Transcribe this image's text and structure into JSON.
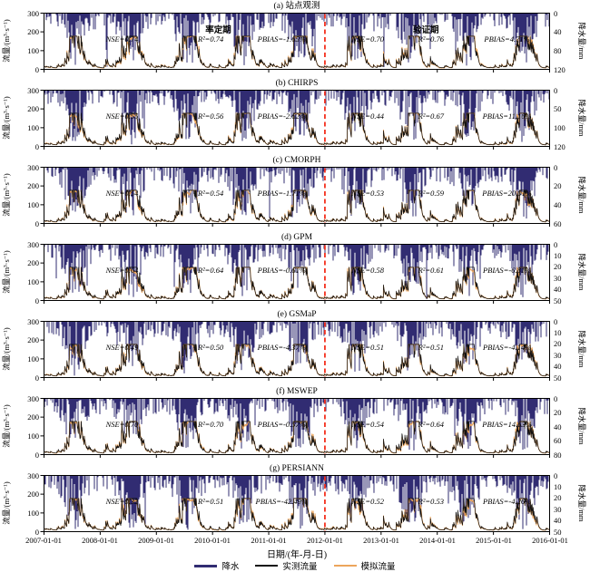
{
  "figure": {
    "x_axis": {
      "label": "日期/(年-月-日)",
      "ticks": [
        "2007-01-01",
        "2008-01-01",
        "2009-01-01",
        "2010-01-01",
        "2011-01-01",
        "2012-01-01",
        "2013-01-01",
        "2014-01-01",
        "2015-01-01",
        "2016-01-01"
      ]
    },
    "flow_axis": {
      "label": "流量/(m³·s⁻¹)",
      "ticks": [
        "300",
        "200",
        "100",
        "0"
      ]
    },
    "precip_axis_label": "降水量/mm",
    "period_labels": {
      "calibration": "率定期",
      "validation": "验证期"
    },
    "divider": {
      "date": "2012-01-01",
      "color": "#f5301e",
      "style": "dashed"
    },
    "legend": [
      {
        "key": "precipitation",
        "label": "降水",
        "color": "#312c72",
        "thickness": 3
      },
      {
        "key": "observed-flow",
        "label": "实测流量",
        "color": "#111111",
        "thickness": 1.2
      },
      {
        "key": "simulated-flow",
        "label": "模拟流量",
        "color": "#eca55c",
        "thickness": 1.2
      }
    ]
  },
  "chart_data": [
    {
      "type": "line+bar",
      "panel": "a",
      "title": "(a) 站点观测",
      "x_range": [
        "2007-01-01",
        "2016-01-01"
      ],
      "split_date": "2012-01-01",
      "series": [
        "降水",
        "实测流量",
        "模拟流量"
      ],
      "flow_ylim": [
        0,
        300
      ],
      "flow_ticks": [
        0,
        100,
        200,
        300
      ],
      "precip_ticks": [
        0,
        40,
        80,
        120
      ],
      "precip_axis_inverted": true,
      "approx_peak_flow_m3s": [
        90,
        170
      ],
      "calibration_stats": [
        "NSE=0.74",
        "R²=0.74",
        "PBIAS=-1.65%"
      ],
      "validation_stats": [
        "NSE=0.70",
        "R²=0.76",
        "PBIAS=4.71%"
      ]
    },
    {
      "type": "line+bar",
      "panel": "b",
      "title": "(b) CHIRPS",
      "x_range": [
        "2007-01-01",
        "2016-01-01"
      ],
      "split_date": "2012-01-01",
      "series": [
        "降水",
        "实测流量",
        "模拟流量"
      ],
      "flow_ylim": [
        0,
        300
      ],
      "flow_ticks": [
        0,
        100,
        200,
        300
      ],
      "precip_ticks": [
        0,
        50,
        100,
        120
      ],
      "precip_axis_inverted": true,
      "approx_peak_flow_m3s": [
        90,
        170
      ],
      "calibration_stats": [
        "NSE=0.55",
        "R²=0.56",
        "PBIAS=-2.62%"
      ],
      "validation_stats": [
        "NSE=0.44",
        "R²=0.67",
        "PBIAS=11.16%"
      ]
    },
    {
      "type": "line+bar",
      "panel": "c",
      "title": "(c) CMORPH",
      "x_range": [
        "2007-01-01",
        "2016-01-01"
      ],
      "split_date": "2012-01-01",
      "series": [
        "降水",
        "实测流量",
        "模拟流量"
      ],
      "flow_ylim": [
        0,
        300
      ],
      "flow_ticks": [
        0,
        100,
        200,
        300
      ],
      "precip_ticks": [
        0,
        20,
        40,
        60
      ],
      "precip_axis_inverted": true,
      "approx_peak_flow_m3s": [
        90,
        170
      ],
      "calibration_stats": [
        "NSE=0.54",
        "R²=0.54",
        "PBIAS=-1.71%"
      ],
      "validation_stats": [
        "NSE=0.53",
        "R²=0.59",
        "PBIAS=20.01%"
      ]
    },
    {
      "type": "line+bar",
      "panel": "d",
      "title": "(d) GPM",
      "x_range": [
        "2007-01-01",
        "2016-01-01"
      ],
      "split_date": "2012-01-01",
      "series": [
        "降水",
        "实测流量",
        "模拟流量"
      ],
      "flow_ylim": [
        0,
        300
      ],
      "flow_ticks": [
        0,
        100,
        200,
        300
      ],
      "precip_ticks": [
        0,
        10,
        20,
        30,
        40,
        50
      ],
      "precip_axis_inverted": true,
      "approx_peak_flow_m3s": [
        90,
        170
      ],
      "calibration_stats": [
        "NSE=0.64",
        "R²=0.64",
        "PBIAS=-0.61%"
      ],
      "validation_stats": [
        "NSE=0.58",
        "R²=0.61",
        "PBIAS=-6.81%"
      ]
    },
    {
      "type": "line+bar",
      "panel": "e",
      "title": "(e) GSMaP",
      "x_range": [
        "2007-01-01",
        "2016-01-01"
      ],
      "split_date": "2012-01-01",
      "series": [
        "降水",
        "实测流量",
        "模拟流量"
      ],
      "flow_ylim": [
        0,
        300
      ],
      "flow_ticks": [
        0,
        100,
        200,
        300
      ],
      "precip_ticks": [
        0,
        10,
        20,
        30,
        40,
        50
      ],
      "precip_axis_inverted": true,
      "approx_peak_flow_m3s": [
        90,
        170
      ],
      "calibration_stats": [
        "NSE=0.49",
        "R²=0.50",
        "PBIAS=-4.37%"
      ],
      "validation_stats": [
        "NSE=0.51",
        "R²=0.51",
        "PBIAS=-4.14%"
      ]
    },
    {
      "type": "line+bar",
      "panel": "f",
      "title": "(f) MSWEP",
      "x_range": [
        "2007-01-01",
        "2016-01-01"
      ],
      "split_date": "2012-01-01",
      "series": [
        "降水",
        "实测流量",
        "模拟流量"
      ],
      "flow_ylim": [
        0,
        300
      ],
      "flow_ticks": [
        0,
        100,
        200,
        300
      ],
      "precip_ticks": [
        0,
        20,
        40,
        60,
        80
      ],
      "precip_axis_inverted": true,
      "approx_peak_flow_m3s": [
        90,
        170
      ],
      "calibration_stats": [
        "NSE=0.70",
        "R²=0.70",
        "PBIAS=-0.57%"
      ],
      "validation_stats": [
        "NSE=0.54",
        "R²=0.64",
        "PBIAS=14.63%"
      ]
    },
    {
      "type": "line+bar",
      "panel": "g",
      "title": "(g) PERSIANN",
      "x_range": [
        "2007-01-01",
        "2016-01-01"
      ],
      "split_date": "2012-01-01",
      "series": [
        "降水",
        "实测流量",
        "模拟流量"
      ],
      "flow_ylim": [
        0,
        300
      ],
      "flow_ticks": [
        0,
        100,
        200,
        300
      ],
      "precip_ticks": [
        0,
        10,
        20,
        30,
        40,
        50
      ],
      "precip_axis_inverted": true,
      "approx_peak_flow_m3s": [
        90,
        170
      ],
      "calibration_stats": [
        "NSE=0.32",
        "R²=0.51",
        "PBIAS=-42.49%"
      ],
      "validation_stats": [
        "NSE=0.52",
        "R²=0.53",
        "PBIAS=-4.26%"
      ]
    }
  ]
}
